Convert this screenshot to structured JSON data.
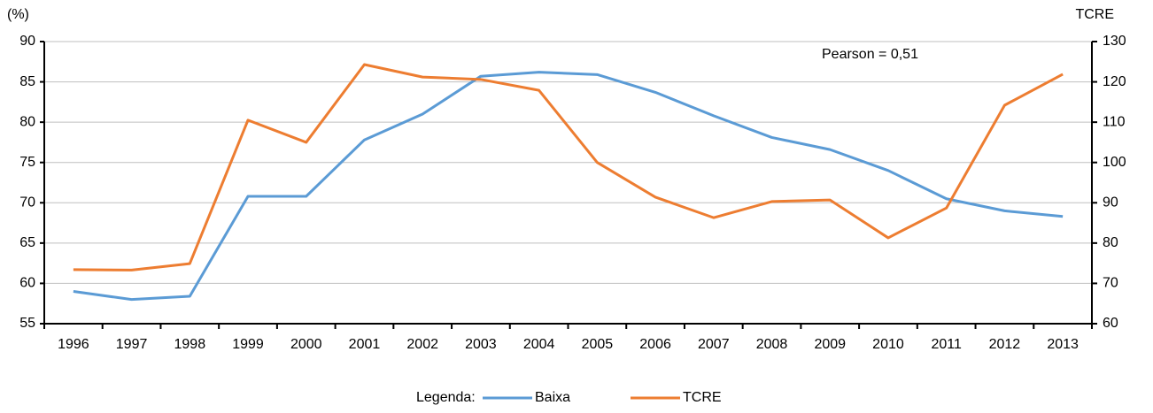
{
  "chart_data": {
    "type": "line",
    "ylabel": "(%)",
    "y2label": "TCRE",
    "annotation": "Pearson = 0,51",
    "legend_title": "Legenda:",
    "categories": [
      "1996",
      "1997",
      "1998",
      "1999",
      "2000",
      "2001",
      "2002",
      "2003",
      "2004",
      "2005",
      "2006",
      "2007",
      "2008",
      "2009",
      "2010",
      "2011",
      "2012",
      "2013"
    ],
    "series": [
      {
        "name": "Baixa",
        "color": "#5b9bd5",
        "values": [
          59.0,
          58.0,
          58.4,
          70.8,
          70.8,
          77.8,
          81.0,
          85.7,
          86.2,
          85.9,
          83.7,
          80.8,
          78.1,
          76.6,
          74.0,
          70.5,
          69.0,
          68.3
        ]
      },
      {
        "name": "TCRE",
        "color": "#ed7d31",
        "axis": "y2",
        "values": [
          73.4,
          73.3,
          74.9,
          110.5,
          105.0,
          124.3,
          121.2,
          120.6,
          117.9,
          100.0,
          91.4,
          86.3,
          90.3,
          90.7,
          81.3,
          88.7,
          114.2,
          121.9
        ]
      }
    ],
    "ylim": [
      55,
      90
    ],
    "yticks": [
      55,
      60,
      65,
      70,
      75,
      80,
      85,
      90
    ],
    "y2lim": [
      60,
      130
    ],
    "y2ticks": [
      60,
      70,
      80,
      90,
      100,
      110,
      120,
      130
    ],
    "grid": true,
    "legend": "bottom"
  }
}
